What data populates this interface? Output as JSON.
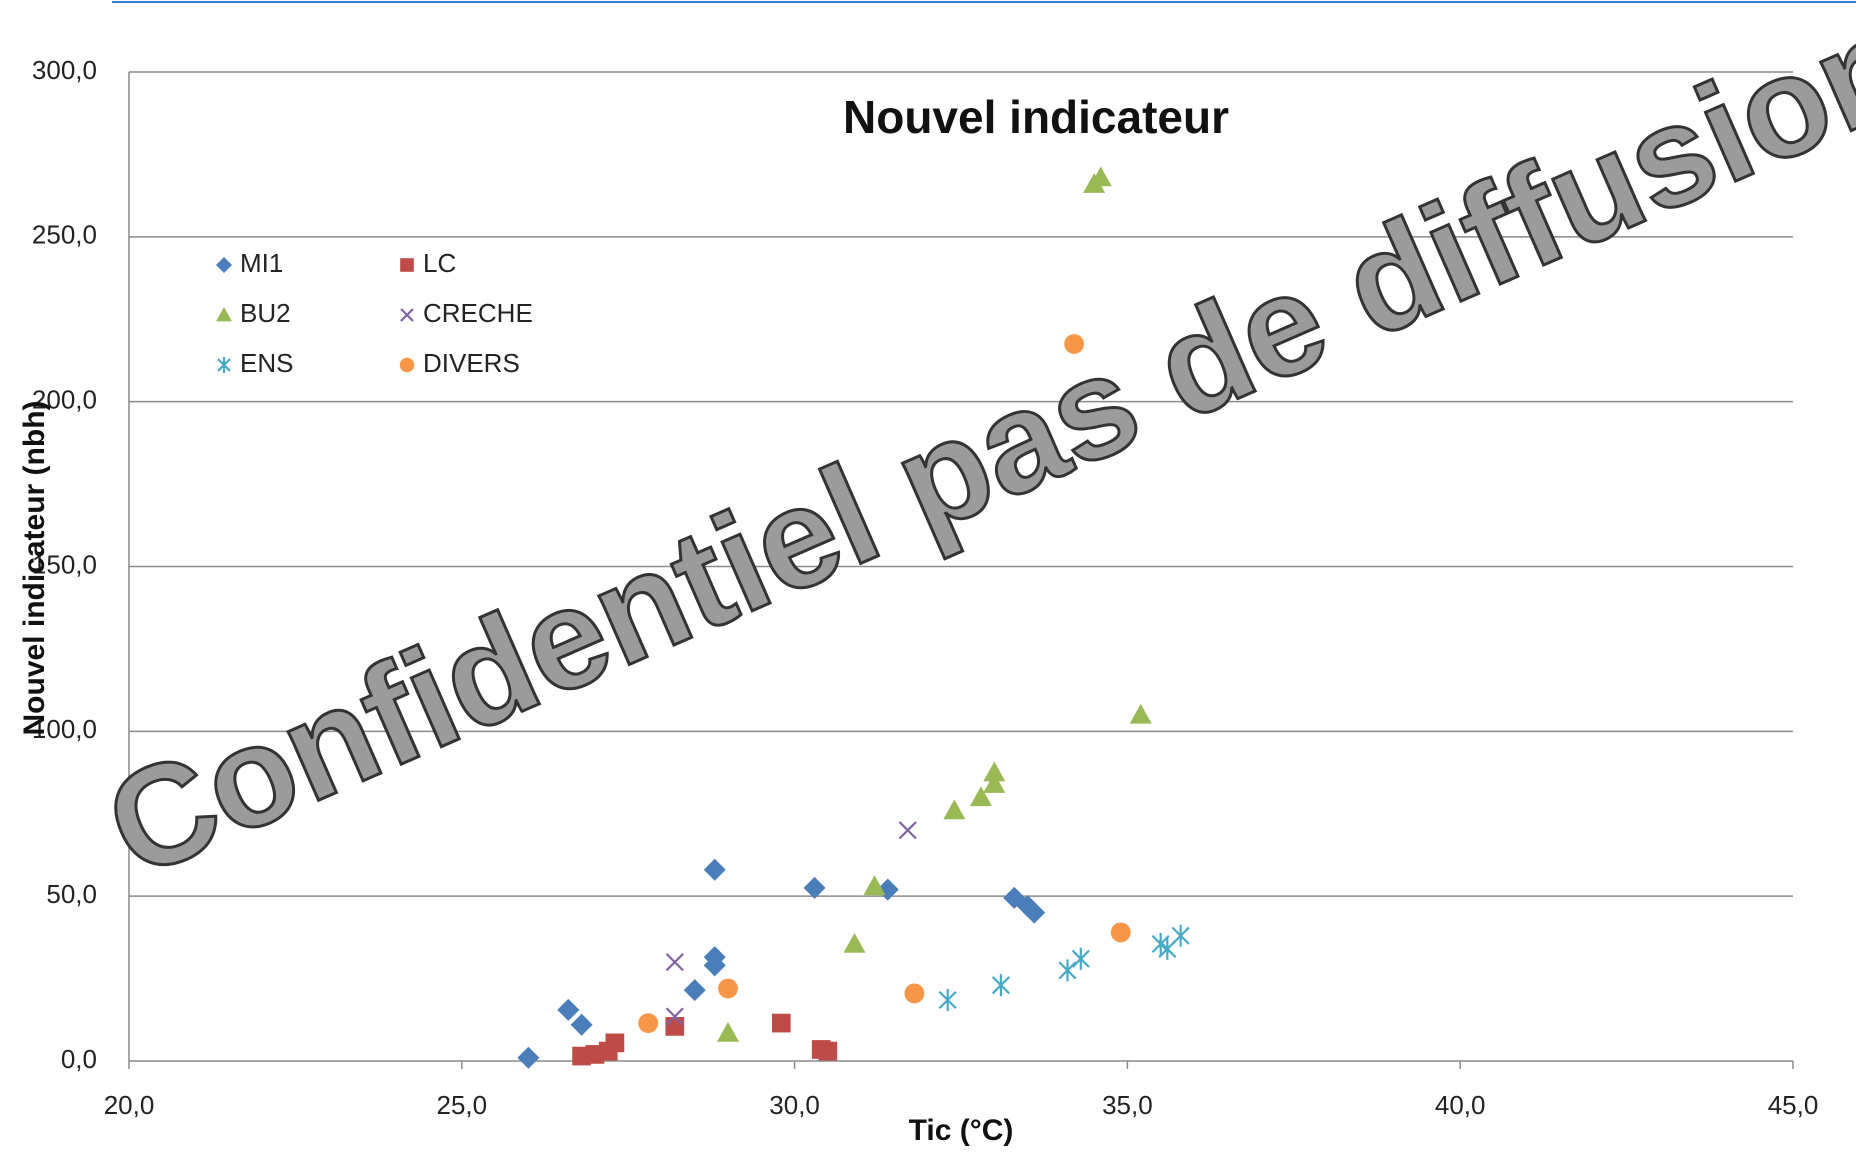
{
  "chart_data": {
    "type": "scatter",
    "title": "Nouvel indicateur",
    "x_label": "Tic (°C)",
    "y_label": "Nouvel indicateur (nbh)",
    "annotation": "Confidentiel pas de diffusion",
    "xlim": [
      20,
      45
    ],
    "ylim": [
      0,
      300
    ],
    "xticks": [
      {
        "value": 20,
        "label": "20,0"
      },
      {
        "value": 25,
        "label": "25,0"
      },
      {
        "value": 30,
        "label": "30,0"
      },
      {
        "value": 35,
        "label": "35,0"
      },
      {
        "value": 40,
        "label": "40,0"
      },
      {
        "value": 45,
        "label": "45,0"
      }
    ],
    "yticks": [
      {
        "value": 0,
        "label": "0,0"
      },
      {
        "value": 50,
        "label": "50,0"
      },
      {
        "value": 100,
        "label": "100,0"
      },
      {
        "value": 150,
        "label": "150,0"
      },
      {
        "value": 200,
        "label": "200,0"
      },
      {
        "value": 250,
        "label": "250,0"
      },
      {
        "value": 300,
        "label": "300,0"
      }
    ],
    "grid": true,
    "series": [
      {
        "name": "MI1",
        "color": "#4a7ebb",
        "marker": "diamond",
        "x": [
          26.0,
          26.6,
          26.8,
          28.5,
          28.8,
          28.8,
          28.8,
          30.3,
          31.4,
          33.3,
          33.5,
          33.6
        ],
        "values": [
          1,
          15.5,
          11,
          21.5,
          58,
          31.5,
          29,
          52.5,
          52,
          49.5,
          47,
          45
        ]
      },
      {
        "name": "LC",
        "color": "#be4b48",
        "marker": "square",
        "x": [
          26.8,
          27.0,
          27.2,
          27.3,
          28.2,
          29.8,
          30.4,
          30.5
        ],
        "values": [
          1.5,
          2,
          3,
          5.5,
          10.5,
          11.5,
          3.5,
          3
        ]
      },
      {
        "name": "BU2",
        "color": "#98b954",
        "marker": "triangle",
        "x": [
          34.5,
          34.6,
          35.2,
          29.0,
          30.9,
          31.2,
          32.4,
          32.8,
          33.0,
          33.0
        ],
        "values": [
          266,
          268,
          105,
          8.5,
          35.5,
          53,
          76,
          80,
          84,
          87.5
        ]
      },
      {
        "name": "CRECHE",
        "color": "#7e62a1",
        "marker": "x",
        "x": [
          28.2,
          28.2,
          31.7
        ],
        "values": [
          30,
          13.5,
          70
        ]
      },
      {
        "name": "ENS",
        "color": "#46aac5",
        "marker": "star",
        "x": [
          32.3,
          33.1,
          34.1,
          34.3,
          35.5,
          35.6,
          35.8
        ],
        "values": [
          18.5,
          23,
          27.5,
          31,
          35.5,
          34,
          38
        ]
      },
      {
        "name": "DIVERS",
        "color": "#f79646",
        "marker": "circle",
        "x": [
          34.2,
          27.8,
          29.0,
          31.8,
          34.9
        ],
        "values": [
          217.5,
          11.5,
          22,
          20.5,
          39
        ]
      }
    ]
  }
}
